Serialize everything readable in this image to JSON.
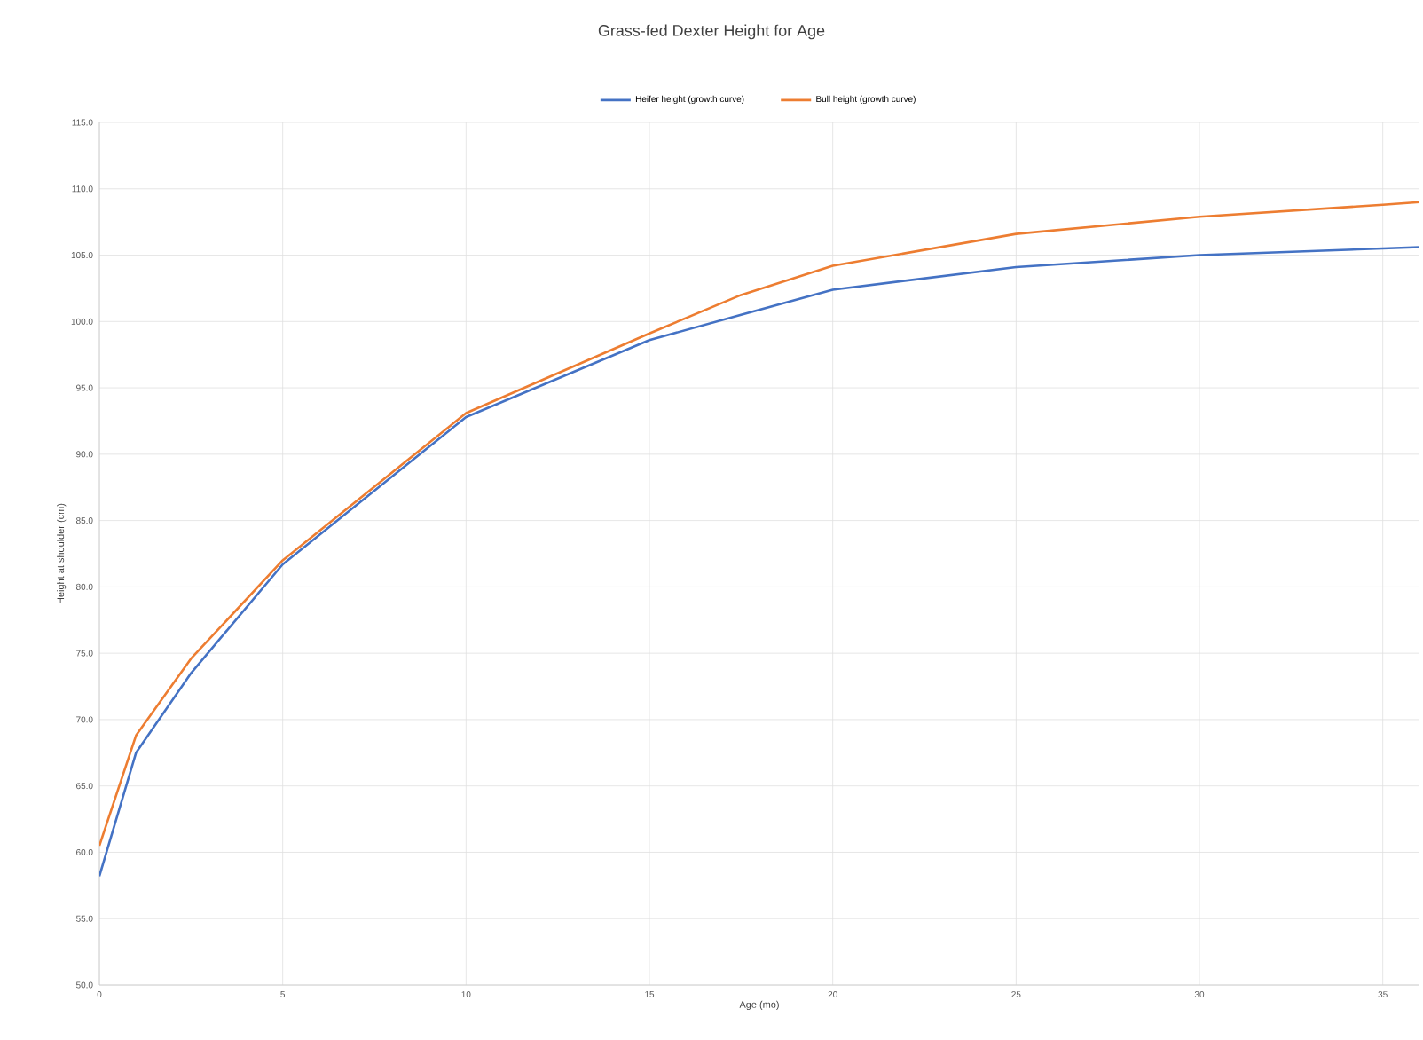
{
  "chart_data": {
    "type": "line",
    "title": "Grass-fed Dexter Height for Age",
    "xlabel": "Age (mo)",
    "ylabel": "Height at shoulder (cm)",
    "xlim": [
      0,
      36
    ],
    "xticks": [
      0,
      5,
      10,
      15,
      20,
      25,
      30,
      35
    ],
    "ylim": [
      50,
      115
    ],
    "yticks": [
      {
        "value": 50,
        "label": "50.0"
      },
      {
        "value": 55,
        "label": "55.0"
      },
      {
        "value": 60,
        "label": "60.0"
      },
      {
        "value": 65,
        "label": "65.0"
      },
      {
        "value": 70,
        "label": "70.0"
      },
      {
        "value": 75,
        "label": "75.0"
      },
      {
        "value": 80,
        "label": "80.0"
      },
      {
        "value": 85,
        "label": "85.0"
      },
      {
        "value": 90,
        "label": "90.0"
      },
      {
        "value": 95,
        "label": "95.0"
      },
      {
        "value": 100,
        "label": "100.0"
      },
      {
        "value": 105,
        "label": "105.0"
      },
      {
        "value": 110,
        "label": "110.0"
      },
      {
        "value": 115,
        "label": "115.0"
      }
    ],
    "x": [
      0,
      1,
      2.5,
      5,
      10,
      15,
      17.5,
      20,
      25,
      30,
      35,
      36
    ],
    "series": [
      {
        "name": "Heifer height (growth curve)",
        "color": "#4472c4",
        "values": [
          58.2,
          67.5,
          73.5,
          81.7,
          92.8,
          98.6,
          100.5,
          102.4,
          104.1,
          105.0,
          105.5,
          105.6
        ]
      },
      {
        "name": "Bull height (growth curve)",
        "color": "#ed7d31",
        "values": [
          60.5,
          68.8,
          74.6,
          82.0,
          93.1,
          99.1,
          102.0,
          104.2,
          106.6,
          107.9,
          108.8,
          109.0
        ]
      }
    ],
    "grid": true,
    "legend": "top",
    "marker": "none",
    "line_style": "solid"
  }
}
